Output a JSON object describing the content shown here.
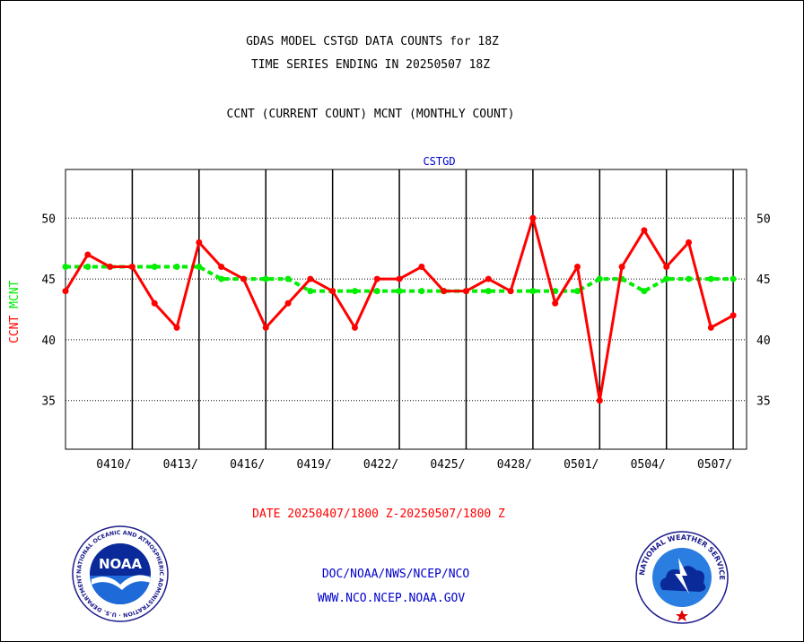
{
  "header": {
    "title_line1": "GDAS MODEL CSTGD DATA COUNTS for 18Z",
    "title_line2": "TIME SERIES ENDING IN 20250507 18Z",
    "subtitle": "CCNT (CURRENT COUNT) MCNT (MONTHLY COUNT)"
  },
  "footer": {
    "date_range": "DATE 20250407/1800 Z-20250507/1800 Z",
    "org_line1": "DOC/NOAA/NWS/NCEP/NCO",
    "org_line2": "WWW.NCO.NCEP.NOAA.GOV"
  },
  "logos": {
    "noaa": {
      "center_text": "NOAA",
      "ring_text": "NATIONAL OCEANIC AND ATMOSPHERIC ADMINISTRATION · U.S. DEPARTMENT OF COMMERCE"
    },
    "nws": {
      "ring_text": "NATIONAL WEATHER SERVICE"
    }
  },
  "colors": {
    "ccnt": "#ff0000",
    "mcnt": "#00ee00",
    "panel_label": "#0000cc",
    "footer_text": "#0000cc",
    "date_text": "#ff0000"
  },
  "chart_data": {
    "type": "line",
    "title": "CSTGD",
    "ylabel_parts": [
      {
        "text": "CCNT",
        "color": "#ff0000"
      },
      {
        "text": "MCNT",
        "color": "#00ee00"
      }
    ],
    "ylim": [
      31,
      54
    ],
    "yticks": [
      35,
      40,
      45,
      50
    ],
    "xlim": [
      0,
      30.6
    ],
    "xtick_labels": [
      {
        "x": 3,
        "label": "0410/"
      },
      {
        "x": 6,
        "label": "0413/"
      },
      {
        "x": 9,
        "label": "0416/"
      },
      {
        "x": 12,
        "label": "0419/"
      },
      {
        "x": 15,
        "label": "0422/"
      },
      {
        "x": 18,
        "label": "0425/"
      },
      {
        "x": 21,
        "label": "0428/"
      },
      {
        "x": 24,
        "label": "0501/"
      },
      {
        "x": 27,
        "label": "0504/"
      },
      {
        "x": 30,
        "label": "0507/"
      }
    ],
    "grid": true,
    "series": [
      {
        "name": "CCNT",
        "values": [
          44,
          47,
          46,
          46,
          43,
          41,
          48,
          46,
          45,
          41,
          43,
          45,
          44,
          41,
          45,
          45,
          46,
          44,
          44,
          45,
          44,
          50,
          43,
          46,
          35,
          46,
          49,
          46,
          48,
          41,
          42
        ]
      },
      {
        "name": "MCNT",
        "values": [
          46,
          46,
          46,
          46,
          46,
          46,
          46,
          45,
          45,
          45,
          45,
          44,
          44,
          44,
          44,
          44,
          44,
          44,
          44,
          44,
          44,
          44,
          44,
          44,
          45,
          45,
          44,
          45,
          45,
          45,
          45
        ]
      }
    ]
  }
}
